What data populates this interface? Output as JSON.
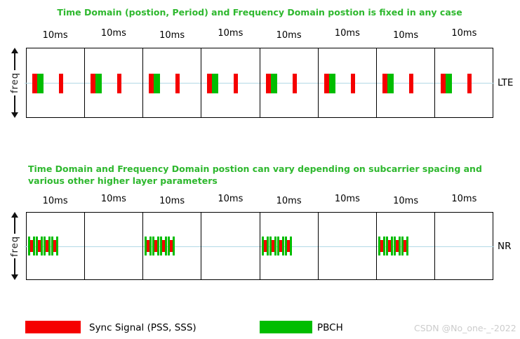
{
  "lte_section": {
    "title": "Time Domain (postion, Period) and Frequency Domain postion is fixed in any case",
    "frame_duration_label": "10ms",
    "frame_count": 8,
    "freq_axis_label": "freq",
    "side_label": "LTE"
  },
  "nr_section": {
    "title_line1": "Time Domain and Frequency Domain postion can vary depending on subcarrier spacing and",
    "title_line2": "various other higher layer parameters",
    "frame_duration_label": "10ms",
    "frame_count": 8,
    "ssb_frame_indices": [
      0,
      2,
      4,
      6
    ],
    "ssb_blocks_per_burst": 4,
    "freq_axis_label": "freq",
    "side_label": "NR"
  },
  "legend": {
    "sync_label": "Sync Signal (PSS, SSS)",
    "pbch_label": "PBCH"
  },
  "watermark": "CSDN @No_one-_-2022",
  "colors": {
    "title_green": "#2eb82e",
    "sync_red": "#f50000",
    "pbch_green": "#00bd00",
    "center_line": "#b3d9e6",
    "watermark": "#cccccc"
  }
}
